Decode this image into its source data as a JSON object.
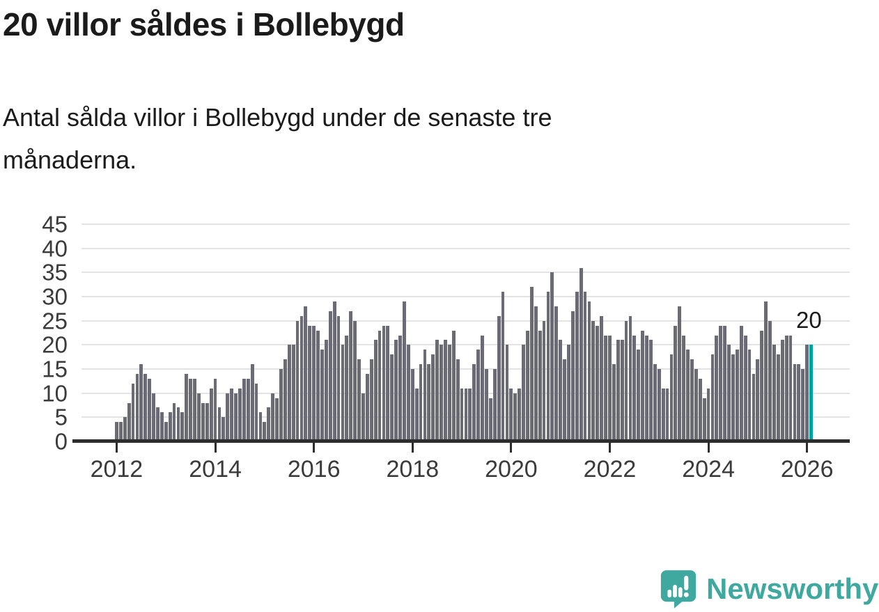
{
  "title": "20 villor såldes i Bollebygd",
  "subtitle_lines": [
    "Antal sålda villor i Bollebygd under de senaste tre",
    "månaderna."
  ],
  "annotation": {
    "label": "20"
  },
  "logo": {
    "text": "Newsworthy",
    "icon": "newsworthy-speech-bubble-bar-chart-icon"
  },
  "colors": {
    "bar": "#6b6b75",
    "highlight": "#00a2a2",
    "grid": "#e3e3e3",
    "axis": "#2d2d2d",
    "heading_text": "#1b1b1b",
    "tick_label_text": "#3b3b3b",
    "logo_teal": "#3fa89f"
  },
  "chart_data": {
    "type": "bar",
    "title": "20 villor såldes i Bollebygd",
    "subtitle": "Antal sålda villor i Bollebygd under de senaste tre månaderna.",
    "x_unit": "month",
    "x_start": "2012-01",
    "x_end": "2026-02",
    "x_tick_labels": [
      "2012",
      "2014",
      "2016",
      "2018",
      "2020",
      "2022",
      "2024",
      "2026"
    ],
    "months_per_x_tick": 24,
    "y_ticks": [
      0,
      5,
      10,
      15,
      20,
      25,
      30,
      35,
      40,
      45
    ],
    "ylim": [
      0,
      45
    ],
    "grid": "horizontal",
    "legend": "none",
    "highlight_last_bar": true,
    "last_bar_label": "20",
    "values": [
      4,
      4,
      5,
      8,
      12,
      14,
      16,
      14,
      13,
      10,
      7,
      6,
      4,
      6,
      8,
      7,
      6,
      14,
      13,
      13,
      10,
      8,
      8,
      11,
      13,
      7,
      5,
      10,
      11,
      10,
      11,
      13,
      13,
      16,
      12,
      6,
      4,
      7,
      10,
      9,
      15,
      17,
      20,
      20,
      25,
      26,
      28,
      24,
      24,
      23,
      19,
      21,
      27,
      29,
      26,
      20,
      22,
      27,
      25,
      17,
      10,
      14,
      17,
      21,
      23,
      24,
      24,
      18,
      21,
      22,
      29,
      20,
      15,
      11,
      16,
      19,
      16,
      18,
      21,
      20,
      21,
      20,
      23,
      17,
      11,
      11,
      11,
      16,
      19,
      22,
      15,
      9,
      15,
      26,
      31,
      20,
      11,
      10,
      11,
      20,
      23,
      32,
      28,
      23,
      25,
      31,
      35,
      28,
      21,
      17,
      20,
      27,
      31,
      36,
      31,
      29,
      25,
      24,
      26,
      22,
      22,
      16,
      21,
      21,
      25,
      26,
      22,
      19,
      23,
      22,
      21,
      16,
      15,
      11,
      11,
      18,
      24,
      28,
      22,
      19,
      17,
      15,
      13,
      9,
      11,
      18,
      22,
      24,
      24,
      20,
      18,
      19,
      24,
      22,
      19,
      14,
      17,
      23,
      29,
      25,
      20,
      18,
      21,
      22,
      22,
      16,
      16,
      15,
      20,
      20
    ]
  }
}
